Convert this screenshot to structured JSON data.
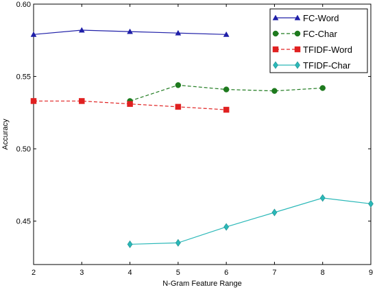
{
  "chart_data": {
    "type": "line",
    "title": "",
    "xlabel": "N-Gram Feature Range",
    "ylabel": "Accuracy",
    "xlim": [
      2,
      9
    ],
    "ylim": [
      0.42,
      0.6
    ],
    "xticks": [
      2,
      3,
      4,
      5,
      6,
      7,
      8,
      9
    ],
    "yticks": [
      0.45,
      0.5,
      0.55,
      0.6
    ],
    "ytick_labels": [
      "0.45",
      "0.50",
      "0.55",
      "0.60"
    ],
    "grid": false,
    "legend_position": "top-right",
    "series": [
      {
        "name": "FC-Word",
        "color": "#1f1fa8",
        "marker": "triangle",
        "line_style": "solid",
        "x": [
          2,
          3,
          4,
          5,
          6
        ],
        "y": [
          0.579,
          0.582,
          0.581,
          0.58,
          0.579
        ]
      },
      {
        "name": "FC-Char",
        "color": "#1e7a1e",
        "marker": "circle",
        "line_style": "dashed",
        "x": [
          4,
          5,
          6,
          7,
          8
        ],
        "y": [
          0.533,
          0.544,
          0.541,
          0.54,
          0.542
        ]
      },
      {
        "name": "TFIDF-Word",
        "color": "#e02020",
        "marker": "square",
        "line_style": "dashed",
        "x": [
          2,
          3,
          4,
          5,
          6
        ],
        "y": [
          0.533,
          0.533,
          0.531,
          0.529,
          0.527
        ]
      },
      {
        "name": "TFIDF-Char",
        "color": "#2ab8b8",
        "marker": "diamond",
        "line_style": "solid",
        "x": [
          4,
          5,
          6,
          7,
          8,
          9
        ],
        "y": [
          0.434,
          0.435,
          0.446,
          0.456,
          0.466,
          0.462
        ]
      }
    ]
  }
}
